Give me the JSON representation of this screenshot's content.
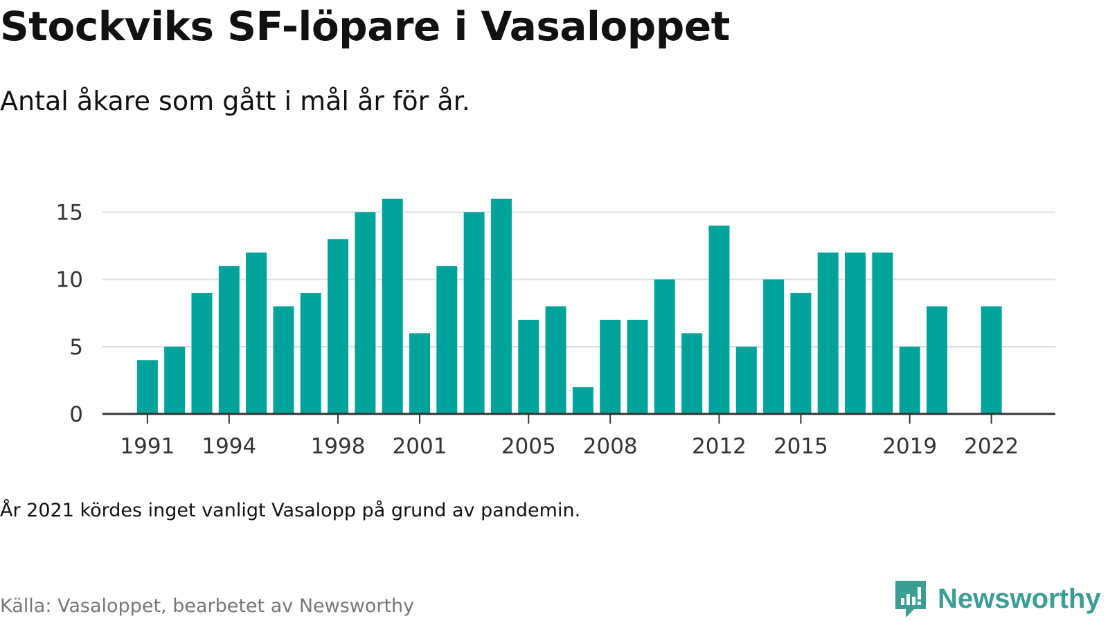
{
  "title": "Stockviks SF-löpare i Vasaloppet",
  "subtitle": "Antal åkare som gått i mål år för år.",
  "note": "År 2021 kördes inget vanligt Vasalopp på grund av pandemin.",
  "source": "Källa: Vasaloppet, bearbetet av Newsworthy",
  "brand": {
    "name": "Newsworthy",
    "icon": "newsworthy-logo-icon"
  },
  "colors": {
    "bar": "#00a39a",
    "grid": "#dddddd",
    "axis": "#333333",
    "brand": "#3a9e93"
  },
  "chart_data": {
    "type": "bar",
    "title": "Stockviks SF-löpare i Vasaloppet",
    "subtitle": "Antal åkare som gått i mål år för år.",
    "xlabel": "",
    "ylabel": "",
    "ylim": [
      0,
      16
    ],
    "yticks": [
      0,
      5,
      10,
      15
    ],
    "xtick_labels": [
      "1991",
      "1994",
      "1998",
      "2001",
      "2005",
      "2008",
      "2012",
      "2015",
      "2019",
      "2022"
    ],
    "grid": "horizontal",
    "categories": [
      1991,
      1992,
      1993,
      1994,
      1995,
      1996,
      1997,
      1998,
      1999,
      2000,
      2001,
      2002,
      2003,
      2004,
      2005,
      2006,
      2007,
      2008,
      2009,
      2010,
      2011,
      2012,
      2013,
      2014,
      2015,
      2016,
      2017,
      2018,
      2019,
      2020,
      2022
    ],
    "values": [
      4,
      5,
      9,
      11,
      12,
      8,
      9,
      13,
      15,
      16,
      6,
      11,
      15,
      16,
      7,
      8,
      2,
      7,
      7,
      10,
      6,
      14,
      5,
      10,
      9,
      12,
      12,
      12,
      5,
      8,
      8
    ]
  }
}
